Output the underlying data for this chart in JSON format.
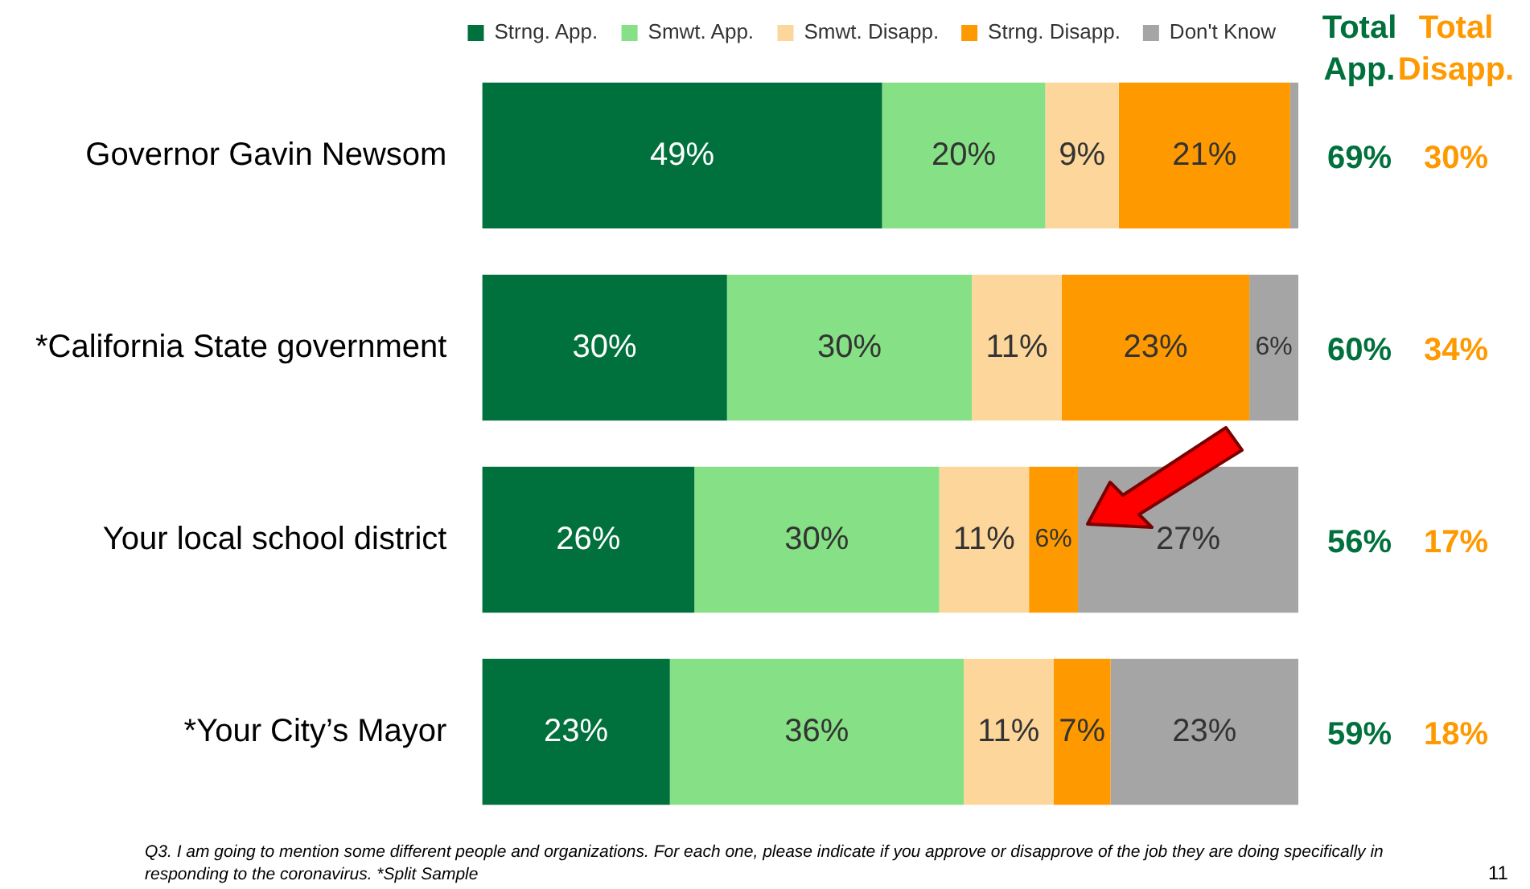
{
  "chart_data": {
    "type": "bar",
    "orientation": "horizontal",
    "stacked": true,
    "legend": "top",
    "tick_labels": "y",
    "grid": false,
    "categories": [
      "Governor Gavin Newsom",
      "*California State government",
      "Your local school district",
      "*Your City’s Mayor"
    ],
    "xlim": [
      0,
      100
    ],
    "series": [
      {
        "name": "Strng. App.",
        "color": "#00703c",
        "values": [
          49,
          30,
          26,
          23
        ],
        "value_labels": [
          "49%",
          "30%",
          "26%",
          "23%"
        ]
      },
      {
        "name": "Smwt. App.",
        "color": "#86e085",
        "values": [
          20,
          30,
          30,
          36
        ],
        "value_labels": [
          "20%",
          "30%",
          "30%",
          "36%"
        ]
      },
      {
        "name": "Smwt. Disapp.",
        "color": "#fdd69b",
        "values": [
          9,
          11,
          11,
          11
        ],
        "value_labels": [
          "9%",
          "11%",
          "11%",
          "11%"
        ]
      },
      {
        "name": "Strng. Disapp.",
        "color": "#ff9900",
        "values": [
          21,
          23,
          6,
          7
        ],
        "value_labels": [
          "21%",
          "23%",
          "6%",
          "7%"
        ]
      },
      {
        "name": "Don't Know",
        "color": "#a5a5a5",
        "values": [
          1,
          6,
          27,
          23
        ],
        "value_labels": [
          null,
          "6%",
          "27%",
          "23%"
        ]
      }
    ],
    "annotations": [
      "Total App.",
      "Total Disapp.",
      "69%",
      "30%",
      "60%",
      "34%",
      "56%",
      "17%",
      "59%",
      "18%",
      "Q3. I am going to mention some different people and organizations. For each one, please indicate if you approve or disapprove of the job they are doing specifically in responding to the coronavirus. *Split Sample",
      "11"
    ]
  }
}
